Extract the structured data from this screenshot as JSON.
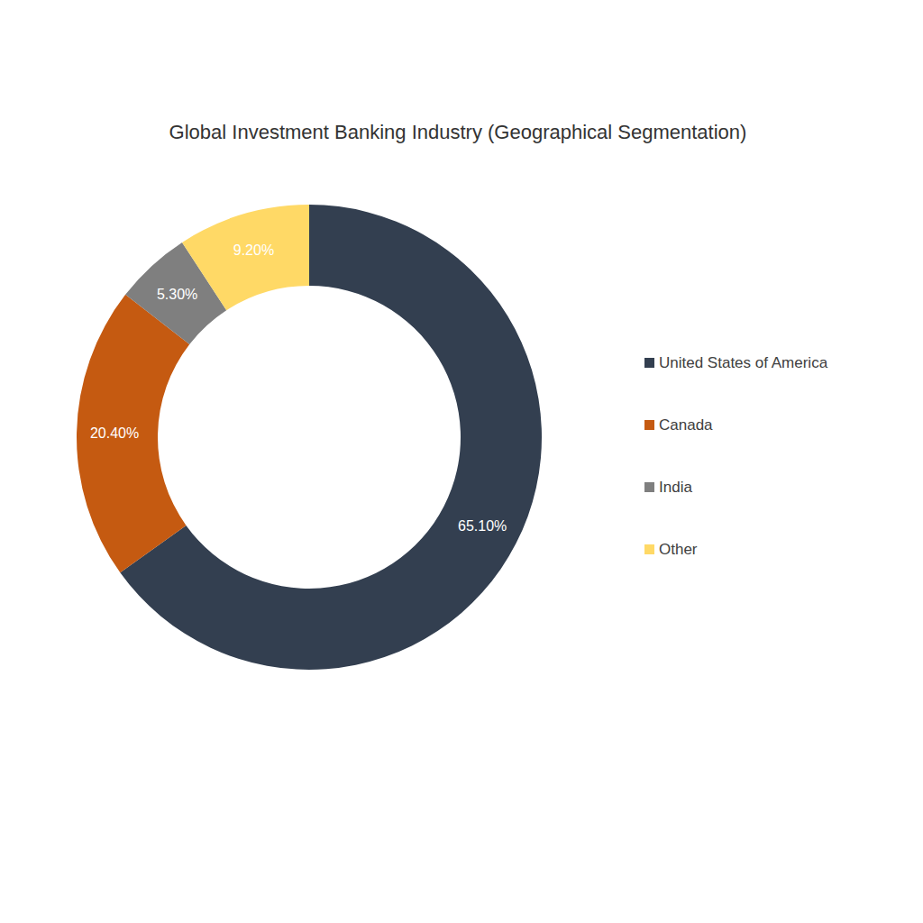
{
  "chart_data": {
    "type": "pie",
    "title": "Global Investment Banking Industry (Geographical Segmentation)",
    "categories": [
      "United States of America",
      "Canada",
      "India",
      "Other"
    ],
    "values": [
      65.1,
      20.4,
      5.3,
      9.2
    ],
    "value_labels": [
      "65.10%",
      "20.40%",
      "5.30%",
      "9.20%"
    ],
    "colors": [
      "#333f50",
      "#c55a11",
      "#7f7f7f",
      "#ffd966"
    ],
    "data_labels": true,
    "legend": "right"
  }
}
